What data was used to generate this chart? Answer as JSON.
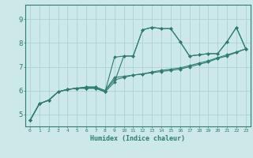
{
  "title": "",
  "xlabel": "Humidex (Indice chaleur)",
  "bg_color": "#cce8e8",
  "grid_color": "#aad4d4",
  "line_color": "#2e7d6e",
  "spine_color": "#2e7d6e",
  "xlim": [
    -0.5,
    23.5
  ],
  "ylim": [
    4.5,
    9.6
  ],
  "xticks": [
    0,
    1,
    2,
    3,
    4,
    5,
    6,
    7,
    8,
    9,
    10,
    11,
    12,
    13,
    14,
    15,
    16,
    17,
    18,
    19,
    20,
    21,
    22,
    23
  ],
  "yticks": [
    5,
    6,
    7,
    8,
    9
  ],
  "series": [
    [
      4.75,
      5.45,
      5.6,
      5.95,
      6.05,
      6.1,
      6.1,
      6.1,
      5.95,
      7.4,
      7.45,
      7.45,
      8.55,
      8.65,
      8.6,
      8.6,
      8.05,
      7.45,
      7.5,
      7.55,
      7.55,
      8.05,
      8.65,
      7.75
    ],
    [
      4.75,
      5.45,
      5.6,
      5.95,
      6.05,
      6.1,
      6.1,
      6.1,
      5.95,
      6.35,
      7.45,
      7.45,
      8.55,
      8.65,
      8.6,
      8.6,
      8.05,
      7.45,
      7.5,
      7.55,
      7.55,
      8.05,
      8.65,
      7.75
    ],
    [
      4.75,
      5.45,
      5.6,
      5.95,
      6.05,
      6.1,
      6.15,
      6.15,
      6.0,
      6.55,
      6.6,
      6.65,
      6.7,
      6.75,
      6.8,
      6.85,
      6.9,
      7.0,
      7.1,
      7.2,
      7.35,
      7.45,
      7.6,
      7.75
    ],
    [
      4.75,
      5.45,
      5.6,
      5.95,
      6.05,
      6.1,
      6.15,
      6.15,
      6.0,
      6.45,
      6.55,
      6.65,
      6.7,
      6.78,
      6.85,
      6.9,
      6.95,
      7.05,
      7.15,
      7.25,
      7.38,
      7.5,
      7.62,
      7.75
    ]
  ],
  "xlabel_fontsize": 6.0,
  "xtick_fontsize": 4.5,
  "ytick_fontsize": 6.5,
  "linewidth": 0.8,
  "markersize": 2.0
}
